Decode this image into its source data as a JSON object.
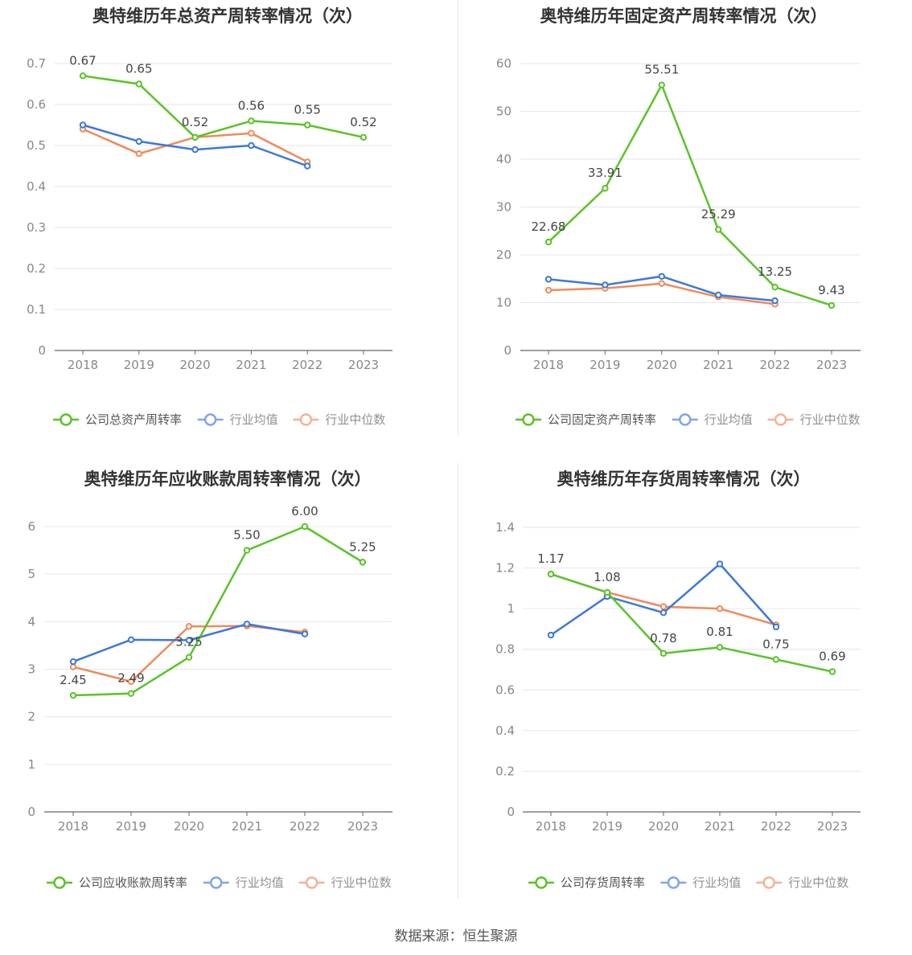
{
  "source_label": "数据来源：恒生聚源",
  "colors": {
    "company": "#5ac328",
    "industry_avg": "#3c78d8",
    "industry_median": "#ef8a5a",
    "grid": "#e3e6ef",
    "axis_text": "#888888",
    "label_text": "#444444",
    "title_text": "#333333"
  },
  "chart_data": [
    {
      "type": "line",
      "title": "奥特维历年总资产周转率情况（次）",
      "x": [
        "2018",
        "2019",
        "2020",
        "2021",
        "2022",
        "2023"
      ],
      "ylim": [
        0,
        0.7
      ],
      "yticks": [
        "0",
        "0.1",
        "0.2",
        "0.3",
        "0.4",
        "0.5",
        "0.6",
        "0.7"
      ],
      "grid": true,
      "legend_position": "bottom",
      "series": [
        {
          "name": "公司总资产周转率",
          "role": "company",
          "values": [
            0.67,
            0.65,
            0.52,
            0.56,
            0.55,
            0.52
          ],
          "labels": [
            "0.67",
            "0.65",
            "0.52",
            "0.56",
            "0.55",
            "0.52"
          ]
        },
        {
          "name": "行业均值",
          "role": "industry_avg",
          "values": [
            0.55,
            0.51,
            0.49,
            0.5,
            0.45,
            null
          ]
        },
        {
          "name": "行业中位数",
          "role": "industry_median",
          "values": [
            0.54,
            0.48,
            0.52,
            0.53,
            0.46,
            null
          ]
        }
      ]
    },
    {
      "type": "line",
      "title": "奥特维历年固定资产周转率情况（次）",
      "x": [
        "2018",
        "2019",
        "2020",
        "2021",
        "2022",
        "2023"
      ],
      "ylim": [
        0,
        60
      ],
      "yticks": [
        "0",
        "10",
        "20",
        "30",
        "40",
        "50",
        "60"
      ],
      "grid": true,
      "legend_position": "bottom",
      "series": [
        {
          "name": "公司固定资产周转率",
          "role": "company",
          "values": [
            22.68,
            33.91,
            55.51,
            25.29,
            13.25,
            9.43
          ],
          "labels": [
            "22.68",
            "33.91",
            "55.51",
            "25.29",
            "13.25",
            "9.43"
          ]
        },
        {
          "name": "行业均值",
          "role": "industry_avg",
          "values": [
            14.9,
            13.7,
            15.5,
            11.6,
            10.4,
            null
          ]
        },
        {
          "name": "行业中位数",
          "role": "industry_median",
          "values": [
            12.6,
            13.0,
            14.0,
            11.2,
            9.7,
            null
          ]
        }
      ]
    },
    {
      "type": "line",
      "title": "奥特维历年应收账款周转率情况（次）",
      "x": [
        "2018",
        "2019",
        "2020",
        "2021",
        "2022",
        "2023"
      ],
      "ylim": [
        0,
        6
      ],
      "yticks": [
        "0",
        "1",
        "2",
        "3",
        "4",
        "5",
        "6"
      ],
      "grid": true,
      "legend_position": "bottom",
      "series": [
        {
          "name": "公司应收账款周转率",
          "role": "company",
          "values": [
            2.45,
            2.49,
            3.25,
            5.5,
            6.0,
            5.25
          ],
          "labels": [
            "2.45",
            "2.49",
            "3.25",
            "5.50",
            "6.00",
            "5.25"
          ]
        },
        {
          "name": "行业均值",
          "role": "industry_avg",
          "values": [
            3.16,
            3.62,
            3.61,
            3.95,
            3.74,
            null
          ]
        },
        {
          "name": "行业中位数",
          "role": "industry_median",
          "values": [
            3.05,
            2.74,
            3.9,
            3.91,
            3.78,
            null
          ]
        }
      ]
    },
    {
      "type": "line",
      "title": "奥特维历年存货周转率情况（次）",
      "x": [
        "2018",
        "2019",
        "2020",
        "2021",
        "2022",
        "2023"
      ],
      "ylim": [
        0,
        1.4
      ],
      "yticks": [
        "0",
        "0.2",
        "0.4",
        "0.6",
        "0.8",
        "1",
        "1.2",
        "1.4"
      ],
      "grid": true,
      "legend_position": "bottom",
      "series": [
        {
          "name": "公司存货周转率",
          "role": "company",
          "values": [
            1.17,
            1.08,
            0.78,
            0.81,
            0.75,
            0.69
          ],
          "labels": [
            "1.17",
            "1.08",
            "0.78",
            "0.81",
            "0.75",
            "0.69"
          ]
        },
        {
          "name": "行业均值",
          "role": "industry_avg",
          "values": [
            0.87,
            1.06,
            0.98,
            1.22,
            0.91,
            null
          ]
        },
        {
          "name": "行业中位数",
          "role": "industry_median",
          "values": [
            1.17,
            1.08,
            1.01,
            1.0,
            0.92,
            null
          ]
        }
      ]
    }
  ]
}
